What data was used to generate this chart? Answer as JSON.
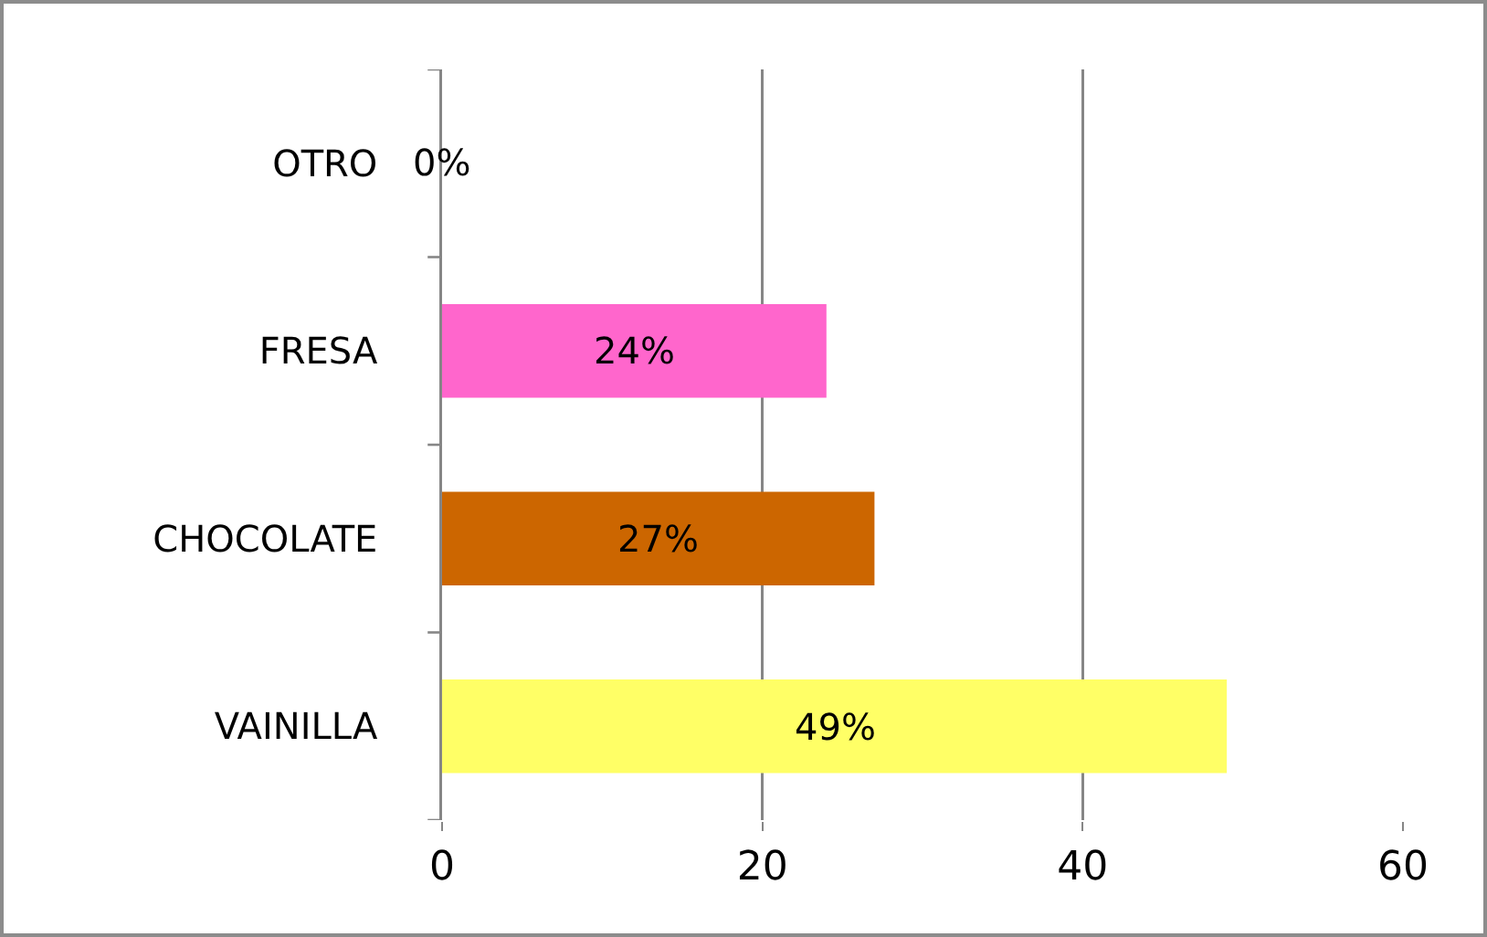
{
  "chart_data": {
    "type": "bar",
    "orientation": "horizontal",
    "categories": [
      "OTRO",
      "FRESA",
      "CHOCOLATE",
      "VAINILLA"
    ],
    "values": [
      0,
      24,
      27,
      49
    ],
    "colors": [
      "#4f81bd",
      "#ff66cc",
      "#cc6600",
      "#ffff66"
    ],
    "value_labels": [
      "0%",
      "24%",
      "27%",
      "49%"
    ],
    "xlim": [
      0,
      60
    ],
    "xticks": [
      0,
      20,
      40,
      60
    ],
    "grid": "x"
  }
}
